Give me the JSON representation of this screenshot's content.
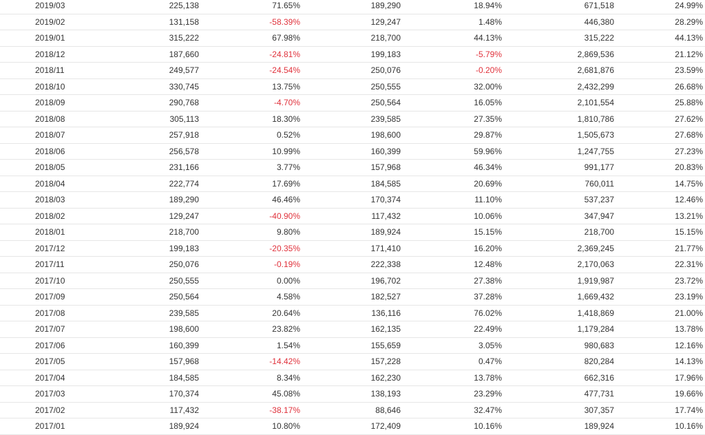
{
  "table": {
    "negative_color": "#e0313b",
    "rows": [
      [
        "2019/03",
        "225,138",
        "71.65%",
        "189,290",
        "18.94%",
        "671,518",
        "24.99%"
      ],
      [
        "2019/02",
        "131,158",
        "-58.39%",
        "129,247",
        "1.48%",
        "446,380",
        "28.29%"
      ],
      [
        "2019/01",
        "315,222",
        "67.98%",
        "218,700",
        "44.13%",
        "315,222",
        "44.13%"
      ],
      [
        "2018/12",
        "187,660",
        "-24.81%",
        "199,183",
        "-5.79%",
        "2,869,536",
        "21.12%"
      ],
      [
        "2018/11",
        "249,577",
        "-24.54%",
        "250,076",
        "-0.20%",
        "2,681,876",
        "23.59%"
      ],
      [
        "2018/10",
        "330,745",
        "13.75%",
        "250,555",
        "32.00%",
        "2,432,299",
        "26.68%"
      ],
      [
        "2018/09",
        "290,768",
        "-4.70%",
        "250,564",
        "16.05%",
        "2,101,554",
        "25.88%"
      ],
      [
        "2018/08",
        "305,113",
        "18.30%",
        "239,585",
        "27.35%",
        "1,810,786",
        "27.62%"
      ],
      [
        "2018/07",
        "257,918",
        "0.52%",
        "198,600",
        "29.87%",
        "1,505,673",
        "27.68%"
      ],
      [
        "2018/06",
        "256,578",
        "10.99%",
        "160,399",
        "59.96%",
        "1,247,755",
        "27.23%"
      ],
      [
        "2018/05",
        "231,166",
        "3.77%",
        "157,968",
        "46.34%",
        "991,177",
        "20.83%"
      ],
      [
        "2018/04",
        "222,774",
        "17.69%",
        "184,585",
        "20.69%",
        "760,011",
        "14.75%"
      ],
      [
        "2018/03",
        "189,290",
        "46.46%",
        "170,374",
        "11.10%",
        "537,237",
        "12.46%"
      ],
      [
        "2018/02",
        "129,247",
        "-40.90%",
        "117,432",
        "10.06%",
        "347,947",
        "13.21%"
      ],
      [
        "2018/01",
        "218,700",
        "9.80%",
        "189,924",
        "15.15%",
        "218,700",
        "15.15%"
      ],
      [
        "2017/12",
        "199,183",
        "-20.35%",
        "171,410",
        "16.20%",
        "2,369,245",
        "21.77%"
      ],
      [
        "2017/11",
        "250,076",
        "-0.19%",
        "222,338",
        "12.48%",
        "2,170,063",
        "22.31%"
      ],
      [
        "2017/10",
        "250,555",
        "0.00%",
        "196,702",
        "27.38%",
        "1,919,987",
        "23.72%"
      ],
      [
        "2017/09",
        "250,564",
        "4.58%",
        "182,527",
        "37.28%",
        "1,669,432",
        "23.19%"
      ],
      [
        "2017/08",
        "239,585",
        "20.64%",
        "136,116",
        "76.02%",
        "1,418,869",
        "21.00%"
      ],
      [
        "2017/07",
        "198,600",
        "23.82%",
        "162,135",
        "22.49%",
        "1,179,284",
        "13.78%"
      ],
      [
        "2017/06",
        "160,399",
        "1.54%",
        "155,659",
        "3.05%",
        "980,683",
        "12.16%"
      ],
      [
        "2017/05",
        "157,968",
        "-14.42%",
        "157,228",
        "0.47%",
        "820,284",
        "14.13%"
      ],
      [
        "2017/04",
        "184,585",
        "8.34%",
        "162,230",
        "13.78%",
        "662,316",
        "17.96%"
      ],
      [
        "2017/03",
        "170,374",
        "45.08%",
        "138,193",
        "23.29%",
        "477,731",
        "19.66%"
      ],
      [
        "2017/02",
        "117,432",
        "-38.17%",
        "88,646",
        "32.47%",
        "307,357",
        "17.74%"
      ],
      [
        "2017/01",
        "189,924",
        "10.80%",
        "172,409",
        "10.16%",
        "189,924",
        "10.16%"
      ]
    ]
  }
}
